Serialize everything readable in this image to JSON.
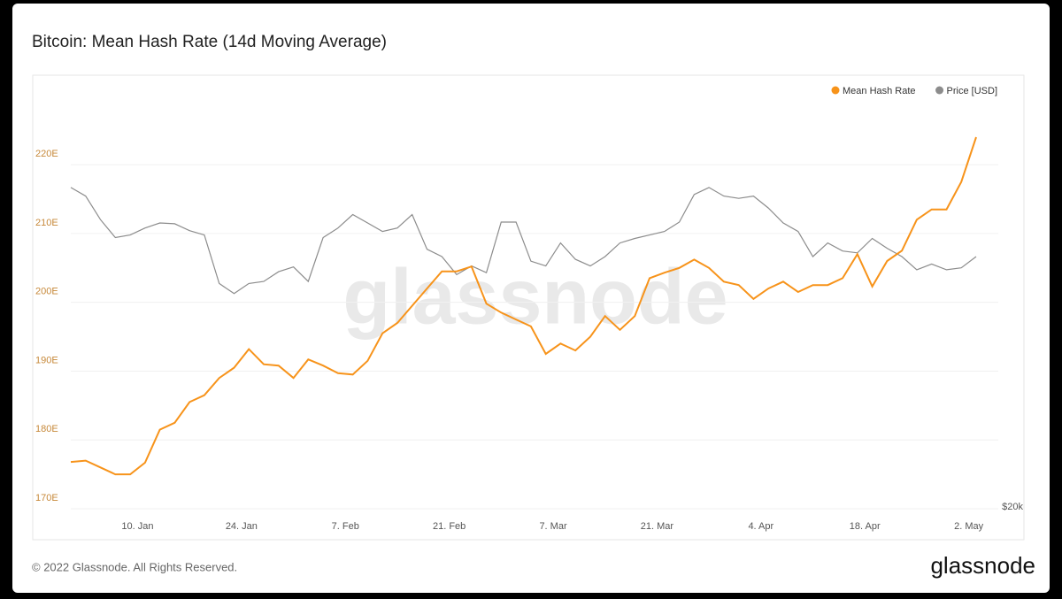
{
  "chart_data": {
    "type": "line",
    "title": "Bitcoin: Mean Hash Rate (14d Moving Average)",
    "watermark": "glassnode",
    "footer": "© 2022 Glassnode. All Rights Reserved.",
    "logo": "glassnode",
    "legend": "top-right",
    "grid": true,
    "x": [
      "01-01",
      "01-03",
      "01-05",
      "01-07",
      "01-09",
      "01-11",
      "01-13",
      "01-15",
      "01-17",
      "01-19",
      "01-21",
      "01-23",
      "01-25",
      "01-27",
      "01-29",
      "01-31",
      "02-02",
      "02-04",
      "02-06",
      "02-08",
      "02-10",
      "02-12",
      "02-14",
      "02-16",
      "02-18",
      "02-20",
      "02-22",
      "02-24",
      "02-26",
      "02-28",
      "03-02",
      "03-04",
      "03-06",
      "03-08",
      "03-10",
      "03-12",
      "03-14",
      "03-16",
      "03-18",
      "03-20",
      "03-22",
      "03-24",
      "03-26",
      "03-28",
      "03-30",
      "04-01",
      "04-03",
      "04-05",
      "04-07",
      "04-09",
      "04-11",
      "04-13",
      "04-15",
      "04-17",
      "04-19",
      "04-21",
      "04-23",
      "04-25",
      "04-27",
      "04-29",
      "05-01",
      "05-03"
    ],
    "xticks": [
      {
        "value": "01-10",
        "label": "10. Jan"
      },
      {
        "value": "01-24",
        "label": "24. Jan"
      },
      {
        "value": "02-07",
        "label": "7. Feb"
      },
      {
        "value": "02-21",
        "label": "21. Feb"
      },
      {
        "value": "03-07",
        "label": "7. Mar"
      },
      {
        "value": "03-21",
        "label": "21. Mar"
      },
      {
        "value": "04-04",
        "label": "4. Apr"
      },
      {
        "value": "04-18",
        "label": "18. Apr"
      },
      {
        "value": "05-02",
        "label": "2. May"
      }
    ],
    "ylim": [
      170,
      233
    ],
    "yticks": [
      {
        "value": 170,
        "label": "170E"
      },
      {
        "value": 180,
        "label": "180E"
      },
      {
        "value": 190,
        "label": "190E"
      },
      {
        "value": 200,
        "label": "200E"
      },
      {
        "value": 210,
        "label": "210E"
      },
      {
        "value": 220,
        "label": "220E"
      }
    ],
    "y2lim": [
      20000,
      65000
    ],
    "y2log": true,
    "y2ticks": [
      {
        "value": 20000,
        "label": "$20k"
      }
    ],
    "series": [
      {
        "name": "Mean Hash Rate",
        "color": "#f7931a",
        "values": [
          176.8,
          177.0,
          176.0,
          175.0,
          175.0,
          176.7,
          181.5,
          182.5,
          185.5,
          186.5,
          189.0,
          190.5,
          193.2,
          191.0,
          190.8,
          189.0,
          191.7,
          190.8,
          189.7,
          189.5,
          191.5,
          195.5,
          197.0,
          199.5,
          202.0,
          204.5,
          204.5,
          205.2,
          199.8,
          198.5,
          197.5,
          196.5,
          192.5,
          194.0,
          193.0,
          195.0,
          198.0,
          196.0,
          198.0,
          203.5,
          204.3,
          205.0,
          206.2,
          205.0,
          203.0,
          202.5,
          200.5,
          202.0,
          203.0,
          201.5,
          202.5,
          202.5,
          203.5,
          207.0,
          202.3,
          206.0,
          207.5,
          212.0,
          213.5,
          213.5,
          217.5,
          224.0
        ]
      },
      {
        "name": "Price [USD]",
        "color": "#8c8c8c",
        "axis": "y2",
        "values": [
          47900,
          46800,
          43900,
          41800,
          42100,
          42900,
          43500,
          43400,
          42600,
          42100,
          36900,
          35900,
          36900,
          37100,
          38100,
          38600,
          37100,
          41800,
          42900,
          44500,
          43500,
          42500,
          42900,
          44500,
          40500,
          39700,
          37800,
          38700,
          38000,
          43600,
          43600,
          39200,
          38700,
          41200,
          39400,
          38700,
          39700,
          41200,
          41700,
          42100,
          42500,
          43600,
          47000,
          47900,
          46800,
          46500,
          46800,
          45300,
          43500,
          42500,
          39700,
          41200,
          40300,
          40100,
          41700,
          40600,
          39700,
          38300,
          38900,
          38300,
          38500,
          39700
        ]
      }
    ]
  }
}
